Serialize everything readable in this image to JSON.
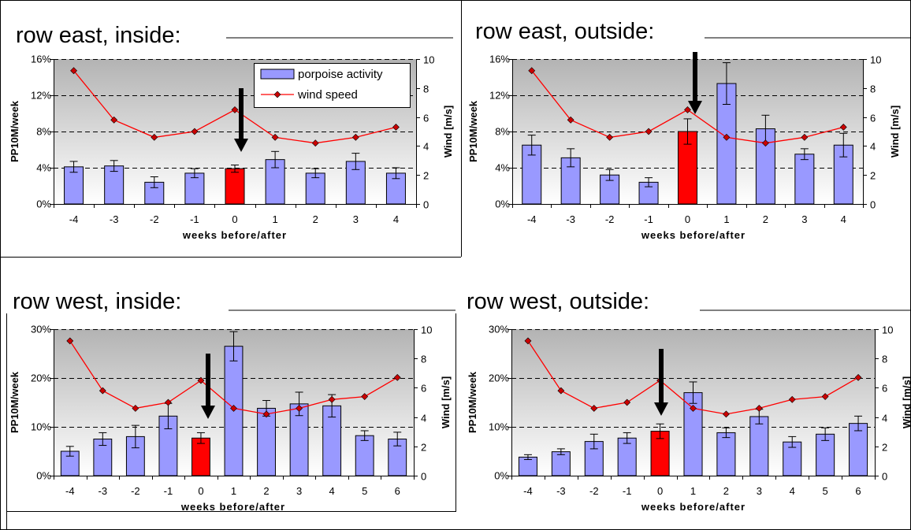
{
  "colors": {
    "bar": "#9999ff",
    "highlight_bar": "#ff0000",
    "wind_line": "#ff0000",
    "wind_marker": "#cc0000",
    "arrow": "#000000",
    "plot_bg_top": "#b3b3b3",
    "plot_bg_bottom": "#ffffff"
  },
  "legend": {
    "bar_label": "porpoise activity",
    "line_label": "wind speed"
  },
  "chart_data": [
    {
      "type": "bar",
      "title": "row east, inside:",
      "xlabel": "weeks before/after",
      "ylabel": "PP10M/week",
      "y2label": "Wind [m/s]",
      "categories": [
        "-4",
        "-3",
        "-2",
        "-1",
        "0",
        "1",
        "2",
        "3",
        "4"
      ],
      "ylim": [
        0,
        16
      ],
      "yticks": [
        "0%",
        "4%",
        "8%",
        "12%",
        "16%"
      ],
      "y2lim": [
        0,
        10
      ],
      "y2ticks": [
        "0",
        "2",
        "4",
        "6",
        "8",
        "10"
      ],
      "highlight_category": "0",
      "legend_shown": true,
      "series": [
        {
          "name": "porpoise activity",
          "axis": "left",
          "values": [
            4.1,
            4.2,
            2.4,
            3.4,
            3.9,
            4.9,
            3.4,
            4.7,
            3.4
          ],
          "errors": [
            0.6,
            0.6,
            0.6,
            0.5,
            0.4,
            0.9,
            0.5,
            0.9,
            0.6
          ]
        },
        {
          "name": "wind speed",
          "axis": "right",
          "values": [
            9.2,
            5.8,
            4.6,
            5.0,
            6.5,
            4.6,
            4.2,
            4.6,
            5.3
          ]
        }
      ]
    },
    {
      "type": "bar",
      "title": "row east, outside:",
      "xlabel": "weeks before/after",
      "ylabel": "PP10M/week",
      "y2label": "Wind [m/s]",
      "categories": [
        "-4",
        "-3",
        "-2",
        "-1",
        "0",
        "1",
        "2",
        "3",
        "4"
      ],
      "ylim": [
        0,
        16
      ],
      "yticks": [
        "0%",
        "4%",
        "8%",
        "12%",
        "16%"
      ],
      "y2lim": [
        0,
        10
      ],
      "y2ticks": [
        "0",
        "2",
        "4",
        "6",
        "8",
        "10"
      ],
      "highlight_category": "0",
      "legend_shown": false,
      "series": [
        {
          "name": "porpoise activity",
          "axis": "left",
          "values": [
            6.5,
            5.1,
            3.2,
            2.4,
            8.0,
            13.3,
            8.3,
            5.5,
            6.5
          ],
          "errors": [
            1.1,
            1.0,
            0.6,
            0.5,
            1.4,
            2.3,
            1.5,
            0.6,
            1.3
          ]
        },
        {
          "name": "wind speed",
          "axis": "right",
          "values": [
            9.2,
            5.8,
            4.6,
            5.0,
            6.5,
            4.6,
            4.2,
            4.6,
            5.3
          ]
        }
      ]
    },
    {
      "type": "bar",
      "title": "row west, inside:",
      "xlabel": "weeks before/after",
      "ylabel": "PP10M/week",
      "y2label": "Wind [m/s]",
      "categories": [
        "-4",
        "-3",
        "-2",
        "-1",
        "0",
        "1",
        "2",
        "3",
        "4",
        "5",
        "6"
      ],
      "ylim": [
        0,
        30
      ],
      "yticks": [
        "0%",
        "10%",
        "20%",
        "30%"
      ],
      "y2lim": [
        0,
        10
      ],
      "y2ticks": [
        "0",
        "2",
        "4",
        "6",
        "8",
        "10"
      ],
      "highlight_category": "0",
      "legend_shown": false,
      "series": [
        {
          "name": "porpoise activity",
          "axis": "left",
          "values": [
            5.0,
            7.5,
            8.0,
            12.2,
            7.7,
            26.5,
            13.8,
            14.7,
            14.3,
            8.2,
            7.5
          ],
          "errors": [
            1.0,
            1.3,
            2.3,
            2.6,
            1.1,
            3.0,
            1.6,
            2.4,
            2.3,
            1.0,
            1.4
          ]
        },
        {
          "name": "wind speed",
          "axis": "right",
          "values": [
            9.2,
            5.8,
            4.6,
            5.0,
            6.5,
            4.6,
            4.2,
            4.6,
            5.2,
            5.4,
            6.7
          ]
        }
      ]
    },
    {
      "type": "bar",
      "title": "row west, outside:",
      "xlabel": "weeks before/after",
      "ylabel": "PP10M/week",
      "y2label": "Wind [m/s]",
      "categories": [
        "-4",
        "-3",
        "-2",
        "-1",
        "0",
        "1",
        "2",
        "3",
        "4",
        "5",
        "6"
      ],
      "ylim": [
        0,
        30
      ],
      "yticks": [
        "0%",
        "10%",
        "20%",
        "30%"
      ],
      "y2lim": [
        0,
        10
      ],
      "y2ticks": [
        "0",
        "2",
        "4",
        "6",
        "8",
        "10"
      ],
      "highlight_category": "0",
      "legend_shown": false,
      "series": [
        {
          "name": "porpoise activity",
          "axis": "left",
          "values": [
            3.8,
            4.9,
            7.0,
            7.7,
            9.1,
            17.0,
            8.8,
            12.1,
            6.9,
            8.5,
            10.7
          ],
          "errors": [
            0.5,
            0.6,
            1.5,
            1.1,
            1.5,
            2.2,
            1.0,
            1.5,
            1.1,
            1.3,
            1.5
          ]
        },
        {
          "name": "wind speed",
          "axis": "right",
          "values": [
            9.2,
            5.8,
            4.6,
            5.0,
            6.5,
            4.6,
            4.2,
            4.6,
            5.2,
            5.4,
            6.7
          ]
        }
      ]
    }
  ]
}
